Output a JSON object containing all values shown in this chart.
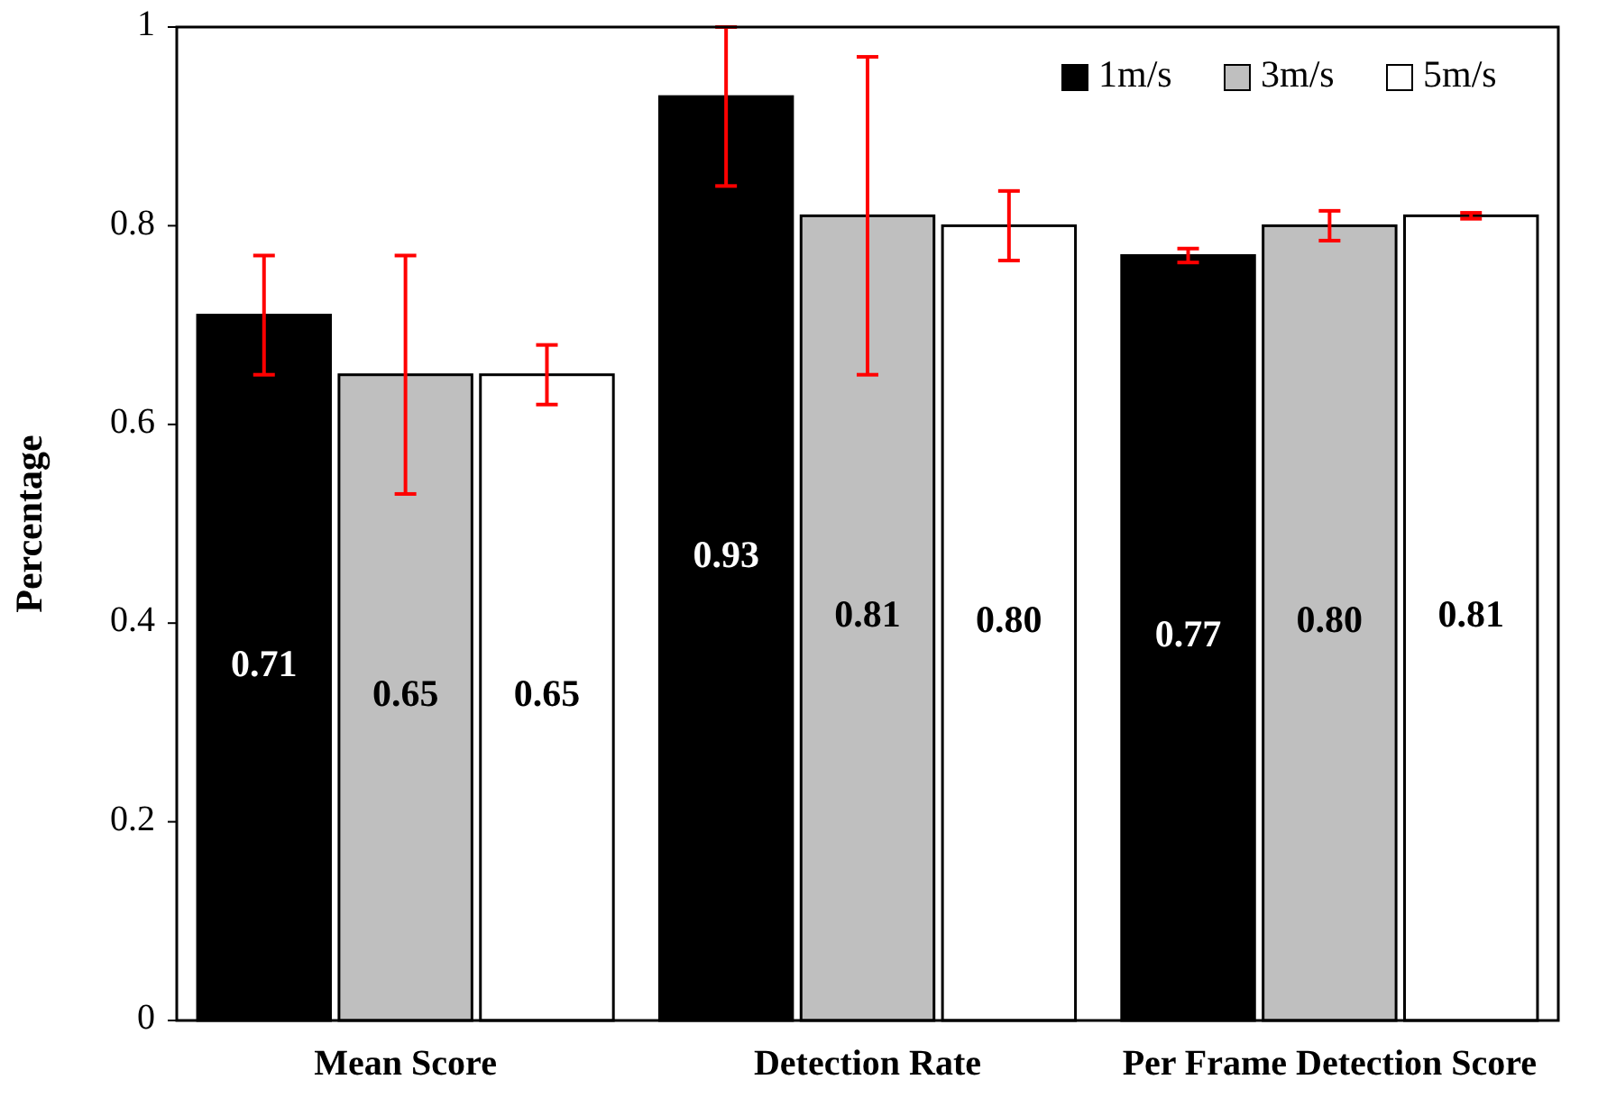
{
  "chart_data": {
    "type": "bar",
    "ylabel": "Percentage",
    "categories": [
      "Mean Score",
      "Detection Rate",
      "Per Frame Detection Score"
    ],
    "series": [
      {
        "name": "1m/s",
        "color": "#000000",
        "values": [
          0.71,
          0.93,
          0.77
        ],
        "errors": [
          0.06,
          [
            0.84,
            1.0
          ],
          0.007
        ],
        "value_labels": [
          "0.71",
          "0.93",
          "0.77"
        ]
      },
      {
        "name": "3m/s",
        "color": "#bfbfbf",
        "values": [
          0.65,
          0.81,
          0.8
        ],
        "errors": [
          0.12,
          0.16,
          0.015
        ],
        "value_labels": [
          "0.65",
          "0.81",
          "0.80"
        ]
      },
      {
        "name": "5m/s",
        "color": "#ffffff",
        "values": [
          0.65,
          0.8,
          0.81
        ],
        "errors": [
          0.03,
          0.035,
          0.003
        ],
        "value_labels": [
          "0.65",
          "0.80",
          "0.81"
        ]
      }
    ],
    "ylim": [
      0,
      1
    ],
    "yticks": [
      0,
      0.2,
      0.4,
      0.6,
      0.8,
      1
    ],
    "legend": "top right",
    "grid": false
  }
}
